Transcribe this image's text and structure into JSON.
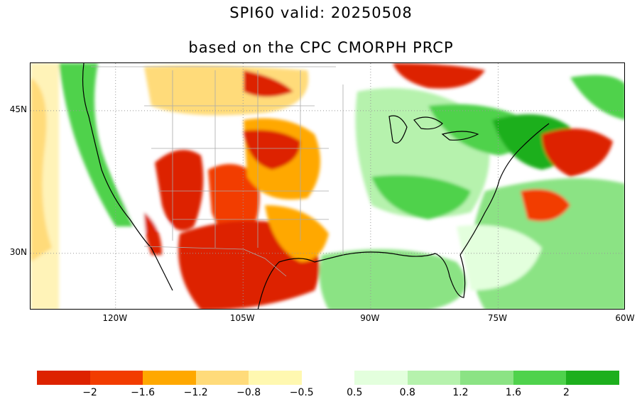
{
  "title": {
    "line1": "SPI60   valid: 20250508",
    "line2": "based on the CPC CMORPH PRCP"
  },
  "map": {
    "projection": "lat-lon",
    "lon_range": [
      -130,
      -60
    ],
    "lat_range": [
      24,
      50
    ],
    "lat_ticks": [
      {
        "value": 45,
        "label": "45N"
      },
      {
        "value": 30,
        "label": "30N"
      }
    ],
    "lon_ticks": [
      {
        "value": -120,
        "label": "120W"
      },
      {
        "value": -105,
        "label": "105W"
      },
      {
        "value": -90,
        "label": "90W"
      },
      {
        "value": -75,
        "label": "75W"
      },
      {
        "value": -60,
        "label": "60W"
      }
    ],
    "grid": "dotted at labeled ticks"
  },
  "colorbar": {
    "segments": [
      {
        "color": "#dd2200"
      },
      {
        "color": "#f23c00"
      },
      {
        "color": "#ffa800"
      },
      {
        "color": "#ffdb7a"
      },
      {
        "color": "#fff8b0"
      },
      {
        "color": "#ffffff"
      },
      {
        "color": "#e3ffdd"
      },
      {
        "color": "#b6f2ad"
      },
      {
        "color": "#8be384"
      },
      {
        "color": "#4fd24c"
      },
      {
        "color": "#1daf1d"
      }
    ],
    "labels": [
      "−2",
      "−1.6",
      "−1.2",
      "−0.8",
      "−0.5",
      "0.5",
      "0.8",
      "1.2",
      "1.6",
      "2"
    ]
  }
}
